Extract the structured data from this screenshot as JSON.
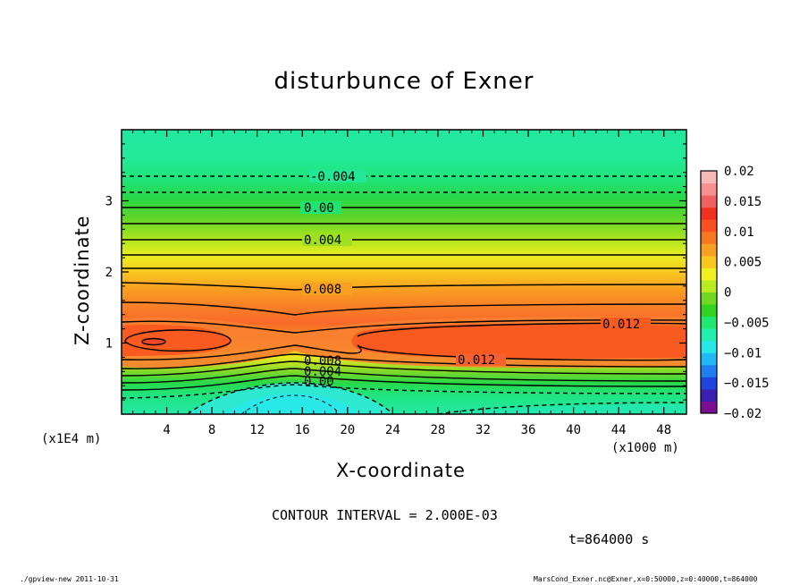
{
  "chart_data": {
    "type": "heatmap",
    "title": "disturbunce of Exner",
    "xlabel": "X-coordinate",
    "ylabel": "Z-coordinate",
    "x_unit_label": "(x1000 m)",
    "y_unit_label": "(x1E4 m)",
    "x_ticks": [
      4,
      8,
      12,
      16,
      20,
      24,
      28,
      32,
      36,
      40,
      44,
      48
    ],
    "y_ticks": [
      1,
      2,
      3
    ],
    "xlim": [
      0,
      50
    ],
    "ylim": [
      0,
      4
    ],
    "colorbar": {
      "ticks": [
        "0.02",
        "0.015",
        "0.01",
        "0.005",
        "0",
        "−0.005",
        "−0.01",
        "−0.015",
        "−0.02"
      ],
      "range": [
        -0.02,
        0.02
      ],
      "colors": [
        "#7a0f94",
        "#3a1fb0",
        "#1f44e0",
        "#1f7ef0",
        "#20b8f5",
        "#26e8e8",
        "#22f0b0",
        "#1ee870",
        "#30d420",
        "#70d820",
        "#b8ec20",
        "#f0f020",
        "#f8c820",
        "#f8a020",
        "#f87820",
        "#f85020",
        "#f03020",
        "#f06060",
        "#f89090",
        "#f8b8b8"
      ]
    },
    "contour_labels": [
      "-0.004",
      "0.00",
      "0.004",
      "0.008",
      "0.012",
      "0.012",
      "0.008",
      "0.004",
      "0.00"
    ],
    "contour_interval": "CONTOUR INTERVAL = 2.000E-03",
    "grid": false
  },
  "time_label": "t=864000 s",
  "footer": {
    "left": "./gpview-new  2011-10-31",
    "right": "MarsCond_Exner.nc@Exner,x=0:50000,z=0:40000,t=864000"
  }
}
